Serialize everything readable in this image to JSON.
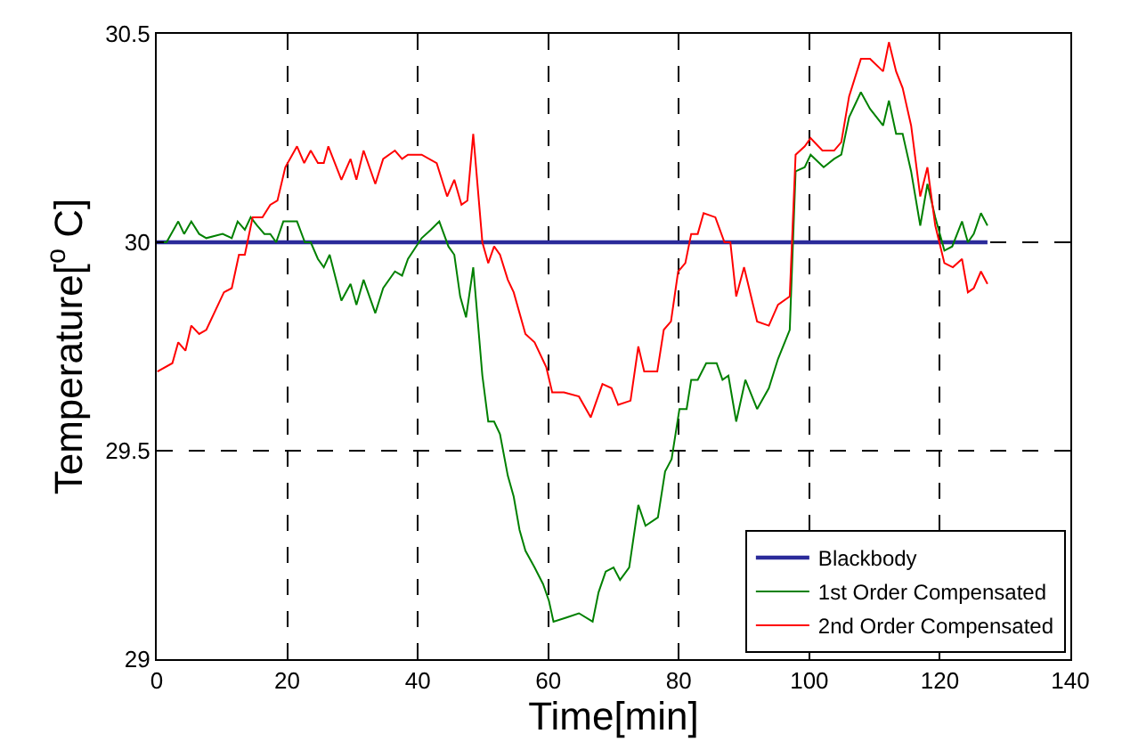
{
  "chart_data": {
    "type": "line",
    "xlabel": "Time[min]",
    "ylabel": "Temperature[$^{o}$ C]",
    "xlim": [
      0,
      140
    ],
    "ylim": [
      29,
      30.5
    ],
    "xticks": [
      0,
      20,
      40,
      60,
      80,
      100,
      120,
      140
    ],
    "yticks": [
      29,
      29.5,
      30,
      30.5
    ],
    "grid": true,
    "legend": "bottom right",
    "line_style": "solid",
    "marker": "none",
    "series": [
      {
        "name": "Blackbody",
        "color": "#2b2b9a",
        "x": [
          0,
          127.3
        ],
        "values": [
          30,
          30
        ]
      },
      {
        "name": "1st Order Compensated",
        "color": "#008000",
        "x": [
          0.1,
          1.5,
          3.3,
          4.2,
          5.3,
          6.5,
          7.6,
          10.1,
          11.5,
          12.4,
          13.5,
          14.4,
          15.4,
          16.5,
          17.4,
          18.3,
          19.4,
          21.5,
          22.7,
          23.6,
          24.7,
          25.6,
          26.5,
          28.3,
          29.7,
          30.6,
          31.7,
          33.5,
          34.7,
          36.5,
          37.6,
          38.5,
          40.6,
          42.0,
          43.3,
          44.7,
          45.6,
          46.5,
          47.4,
          48.5,
          49.9,
          50.8,
          51.7,
          52.6,
          53.8,
          54.7,
          55.6,
          56.5,
          57.9,
          59.2,
          60.1,
          60.8,
          62.8,
          64.7,
          66.8,
          67.7,
          68.8,
          70.0,
          71.0,
          72.4,
          73.8,
          74.9,
          76.8,
          77.9,
          78.9,
          80.1,
          81.2,
          81.9,
          82.9,
          84.2,
          85.8,
          86.7,
          87.6,
          88.8,
          90.2,
          92.0,
          93.8,
          95.2,
          97.0,
          97.9,
          99.3,
          100.2,
          102.2,
          103.8,
          104.9,
          106.1,
          107.9,
          109.3,
          111.3,
          112.2,
          113.3,
          114.3,
          115.6,
          117.0,
          118.1,
          119.3,
          120.7,
          121.9,
          123.4,
          124.3,
          125.2,
          126.3,
          127.3
        ],
        "values": [
          30.0,
          30.0,
          30.05,
          30.02,
          30.05,
          30.02,
          30.01,
          30.02,
          30.01,
          30.05,
          30.03,
          30.06,
          30.04,
          30.02,
          30.02,
          30.0,
          30.05,
          30.05,
          30.0,
          30.0,
          29.96,
          29.94,
          29.97,
          29.86,
          29.9,
          29.85,
          29.91,
          29.83,
          29.89,
          29.93,
          29.92,
          29.96,
          30.01,
          30.03,
          30.05,
          29.99,
          29.97,
          29.87,
          29.82,
          29.94,
          29.68,
          29.57,
          29.57,
          29.54,
          29.44,
          29.39,
          29.31,
          29.26,
          29.22,
          29.18,
          29.14,
          29.09,
          29.1,
          29.11,
          29.09,
          29.16,
          29.21,
          29.22,
          29.19,
          29.22,
          29.37,
          29.32,
          29.34,
          29.45,
          29.48,
          29.6,
          29.6,
          29.67,
          29.67,
          29.71,
          29.71,
          29.67,
          29.68,
          29.57,
          29.67,
          29.6,
          29.65,
          29.72,
          29.79,
          30.17,
          30.18,
          30.21,
          30.18,
          30.2,
          30.21,
          30.3,
          30.36,
          30.32,
          30.28,
          30.34,
          30.26,
          30.26,
          30.17,
          30.04,
          30.14,
          30.06,
          29.98,
          29.99,
          30.05,
          30.0,
          30.02,
          30.07,
          30.04
        ]
      },
      {
        "name": "2nd Order Compensated",
        "color": "#ff0000",
        "x": [
          0.1,
          2.4,
          3.3,
          4.4,
          5.3,
          6.5,
          7.6,
          10.3,
          11.5,
          12.6,
          13.5,
          14.7,
          16.2,
          17.4,
          18.5,
          19.7,
          21.5,
          22.6,
          23.6,
          24.7,
          25.6,
          26.3,
          28.3,
          29.7,
          30.6,
          31.7,
          33.5,
          34.7,
          36.5,
          37.6,
          38.5,
          40.6,
          42.9,
          44.5,
          45.6,
          46.7,
          47.6,
          48.5,
          49.9,
          50.8,
          51.7,
          52.6,
          53.8,
          54.7,
          56.5,
          57.9,
          59.7,
          60.6,
          62.4,
          64.7,
          66.5,
          68.3,
          69.7,
          70.7,
          72.6,
          73.8,
          74.7,
          76.7,
          77.7,
          78.8,
          79.9,
          81.0,
          81.9,
          82.9,
          83.8,
          85.6,
          87.0,
          87.9,
          88.8,
          90.0,
          92.0,
          93.8,
          95.2,
          97.0,
          97.9,
          99.3,
          100.2,
          102.0,
          103.8,
          104.9,
          106.1,
          107.9,
          109.3,
          111.3,
          112.2,
          113.3,
          114.3,
          115.6,
          117.0,
          118.1,
          119.3,
          120.7,
          122.0,
          123.4,
          124.3,
          125.2,
          126.3,
          127.3
        ],
        "values": [
          29.69,
          29.71,
          29.76,
          29.74,
          29.8,
          29.78,
          29.79,
          29.88,
          29.89,
          29.97,
          29.97,
          30.06,
          30.06,
          30.09,
          30.1,
          30.18,
          30.23,
          30.19,
          30.22,
          30.19,
          30.19,
          30.23,
          30.15,
          30.2,
          30.15,
          30.22,
          30.14,
          30.2,
          30.22,
          30.2,
          30.21,
          30.21,
          30.19,
          30.11,
          30.15,
          30.09,
          30.1,
          30.26,
          30.0,
          29.95,
          29.99,
          29.97,
          29.91,
          29.88,
          29.78,
          29.76,
          29.7,
          29.64,
          29.64,
          29.63,
          29.58,
          29.66,
          29.65,
          29.61,
          29.62,
          29.75,
          29.69,
          29.69,
          29.79,
          29.81,
          29.93,
          29.95,
          30.02,
          30.02,
          30.07,
          30.06,
          30.0,
          30.0,
          29.87,
          29.94,
          29.81,
          29.8,
          29.85,
          29.87,
          30.21,
          30.23,
          30.25,
          30.22,
          30.22,
          30.24,
          30.35,
          30.44,
          30.44,
          30.41,
          30.48,
          30.41,
          30.37,
          30.28,
          30.11,
          30.18,
          30.04,
          29.95,
          29.94,
          29.96,
          29.88,
          29.89,
          29.93,
          29.9
        ]
      }
    ]
  }
}
